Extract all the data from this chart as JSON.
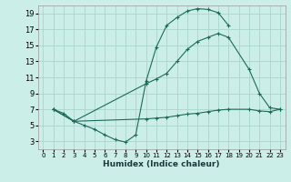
{
  "xlabel": "Humidex (Indice chaleur)",
  "bg_color": "#cceee8",
  "grid_color": "#aad4cc",
  "line_color": "#1a6b5a",
  "xlim": [
    -0.5,
    23.5
  ],
  "ylim": [
    2,
    20
  ],
  "xticks": [
    0,
    1,
    2,
    3,
    4,
    5,
    6,
    7,
    8,
    9,
    10,
    11,
    12,
    13,
    14,
    15,
    16,
    17,
    18,
    19,
    20,
    21,
    22,
    23
  ],
  "yticks": [
    3,
    5,
    7,
    9,
    11,
    13,
    15,
    17,
    19
  ],
  "line1_x": [
    1,
    2,
    3,
    4,
    5,
    6,
    7,
    8,
    9,
    10,
    11,
    12,
    13,
    14,
    15,
    16,
    17,
    18
  ],
  "line1_y": [
    7.0,
    6.5,
    5.5,
    5.0,
    4.5,
    3.8,
    3.2,
    2.9,
    3.8,
    10.5,
    14.8,
    17.5,
    18.5,
    19.3,
    19.6,
    19.5,
    19.1,
    17.5
  ],
  "line2_x": [
    1,
    3,
    10,
    11,
    12,
    13,
    14,
    15,
    16,
    17,
    18,
    20,
    21,
    22,
    23
  ],
  "line2_y": [
    7.0,
    5.5,
    10.2,
    10.8,
    11.5,
    13.0,
    14.5,
    15.5,
    16.0,
    16.5,
    16.0,
    12.0,
    9.0,
    7.2,
    7.0
  ],
  "line3_x": [
    1,
    3,
    10,
    11,
    12,
    13,
    14,
    15,
    16,
    17,
    18,
    20,
    21,
    22,
    23
  ],
  "line3_y": [
    7.0,
    5.5,
    5.8,
    5.9,
    6.0,
    6.2,
    6.4,
    6.5,
    6.7,
    6.9,
    7.0,
    7.0,
    6.8,
    6.7,
    7.0
  ]
}
